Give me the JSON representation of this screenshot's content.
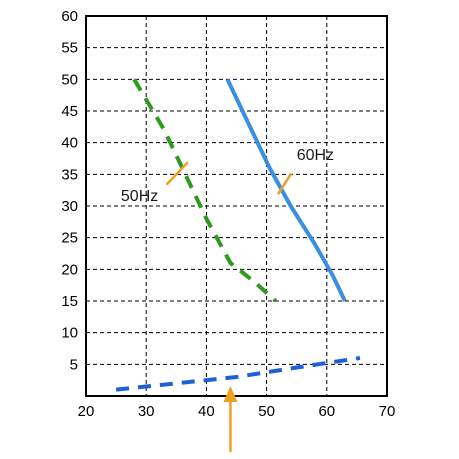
{
  "chart_data": {
    "type": "line",
    "title": "",
    "xlabel": "",
    "ylabel": "",
    "xlim": [
      20,
      70
    ],
    "ylim": [
      0,
      60
    ],
    "x_ticks": [
      20,
      30,
      40,
      50,
      60,
      70
    ],
    "y_ticks": [
      5,
      10,
      15,
      20,
      25,
      30,
      35,
      40,
      45,
      50,
      55,
      60
    ],
    "grid": true,
    "series": [
      {
        "name": "60Hz",
        "color": "#3a8fe0",
        "style": "solid",
        "points": [
          [
            43.5,
            50
          ],
          [
            50.5,
            36
          ],
          [
            54,
            30
          ],
          [
            58,
            24
          ],
          [
            61,
            19
          ],
          [
            63,
            15
          ]
        ]
      },
      {
        "name": "50Hz",
        "color": "#2e9a1e",
        "style": "dashed",
        "points": [
          [
            28,
            50
          ],
          [
            33,
            42
          ],
          [
            36,
            36
          ],
          [
            40,
            28
          ],
          [
            44,
            21
          ],
          [
            48,
            18
          ],
          [
            51.5,
            15
          ]
        ]
      },
      {
        "name": "",
        "color": "#1f5fd6",
        "style": "dashed",
        "points": [
          [
            25,
            1
          ],
          [
            35,
            2
          ],
          [
            45,
            3
          ],
          [
            55,
            4.5
          ],
          [
            65.5,
            6
          ]
        ]
      }
    ],
    "annotations": [
      {
        "text": "60Hz",
        "color": "#f0a020"
      },
      {
        "text": "50Hz",
        "color": "#f0a020"
      }
    ],
    "marker": {
      "x": 44,
      "color": "#f0a020",
      "icon": "up-arrow-icon"
    }
  }
}
